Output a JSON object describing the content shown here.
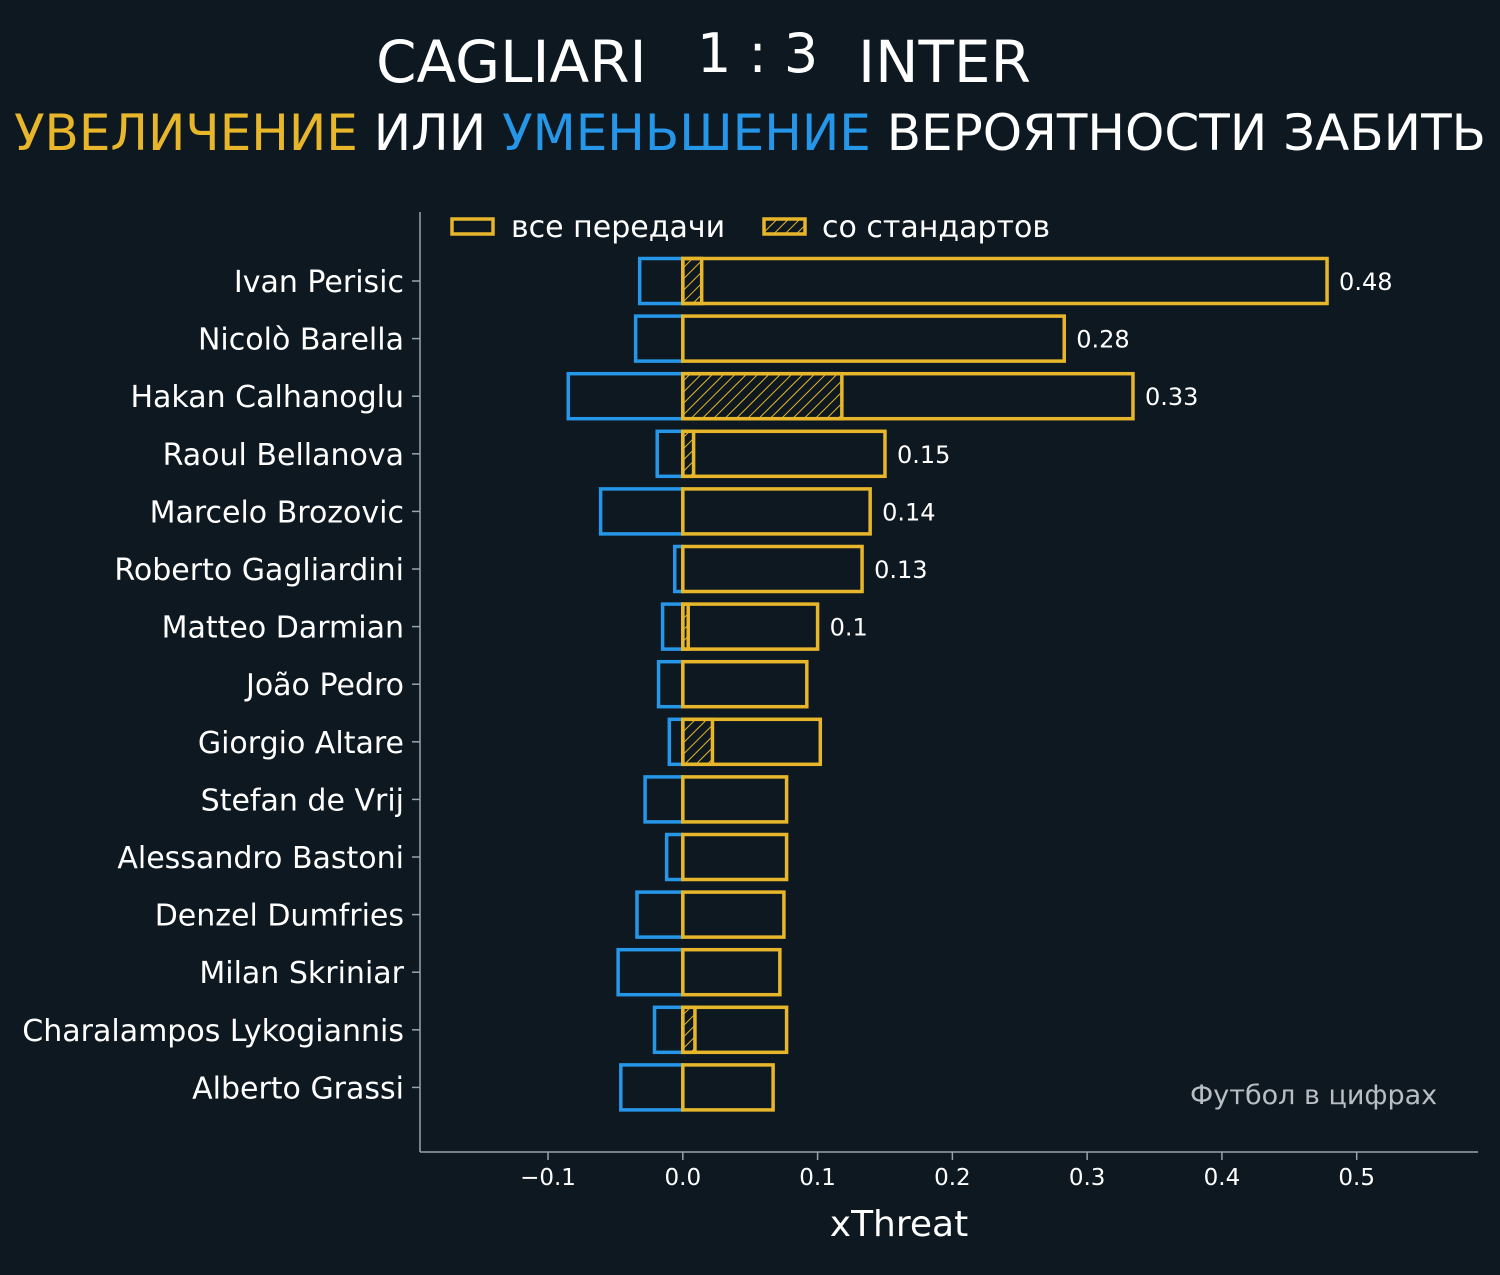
{
  "header": {
    "home_team": "CAGLIARI",
    "score": "1 : 3",
    "away_team": "INTER",
    "subtitle_increase": "УВЕЛИЧЕНИЕ",
    "subtitle_or": " ИЛИ ",
    "subtitle_decrease": "УМЕНЬШЕНИЕ",
    "subtitle_rest": " ВЕРОЯТНОСТИ ЗАБИТЬ"
  },
  "watermark": "Футбол в цифрах",
  "colors": {
    "background": "#0e1821",
    "increase": "#e7b62a",
    "decrease": "#2596e8",
    "axis": "#9aa3ab",
    "text": "#ffffff"
  },
  "chart_data": {
    "type": "bar",
    "orientation": "horizontal",
    "xlabel": "xThreat",
    "ylabel": "",
    "xlim": [
      -0.195,
      0.59
    ],
    "xticks": [
      -0.1,
      0.0,
      0.1,
      0.2,
      0.3,
      0.4,
      0.5
    ],
    "xtick_labels": [
      "−0.1",
      "0.0",
      "0.1",
      "0.2",
      "0.3",
      "0.4",
      "0.5"
    ],
    "grid": false,
    "legend_position": "top-left",
    "legend": [
      "все передачи",
      "со стандартов"
    ],
    "categories": [
      "Ivan Perisic",
      "Nicolò Barella",
      "Hakan Calhanoglu",
      "Raoul Bellanova",
      "Marcelo Brozovic",
      "Roberto Gagliardini",
      "Matteo Darmian",
      "João Pedro",
      "Giorgio Altare",
      "Stefan de Vrij",
      "Alessandro Bastoni",
      "Denzel Dumfries",
      "Milan Skriniar",
      "Charalampos Lykogiannis",
      "Alberto Grassi"
    ],
    "series": [
      {
        "name": "все передачи",
        "negative": [
          -0.032,
          -0.035,
          -0.085,
          -0.019,
          -0.061,
          -0.006,
          -0.015,
          -0.018,
          -0.01,
          -0.028,
          -0.012,
          -0.034,
          -0.048,
          -0.021,
          -0.046
        ],
        "positive": [
          0.478,
          0.283,
          0.334,
          0.15,
          0.139,
          0.133,
          0.1,
          0.092,
          0.102,
          0.077,
          0.077,
          0.075,
          0.072,
          0.077,
          0.067
        ]
      },
      {
        "name": "со стандартов",
        "values": [
          0.014,
          0.0,
          0.118,
          0.008,
          0.0,
          0.0,
          0.004,
          0.0,
          0.022,
          0.0,
          0.0,
          0.0,
          0.0,
          0.009,
          0.0
        ]
      }
    ],
    "value_labels": [
      "0.48",
      "0.28",
      "0.33",
      "0.15",
      "0.14",
      "0.13",
      "0.1",
      "",
      "",
      "",
      "",
      "",
      "",
      "",
      ""
    ]
  }
}
